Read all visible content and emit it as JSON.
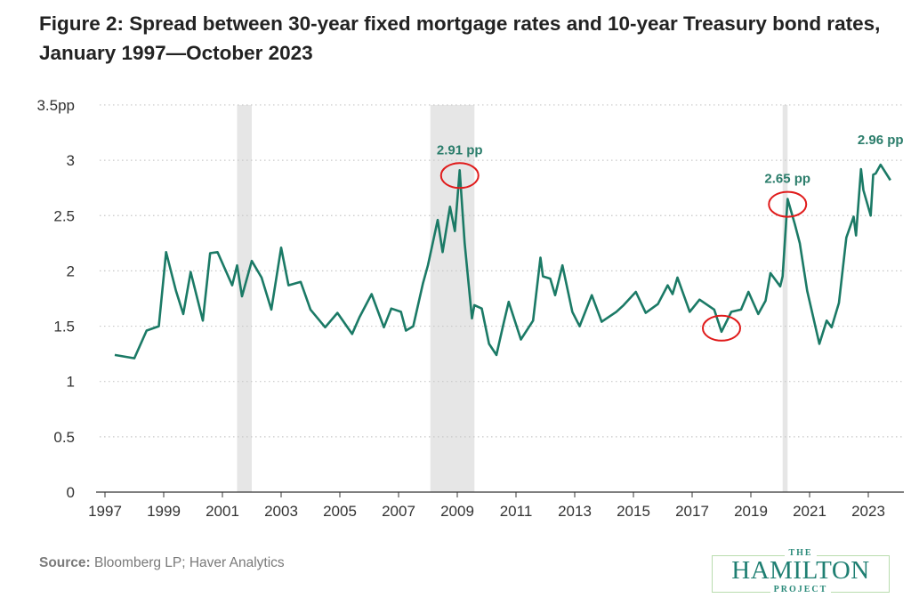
{
  "chart_data": {
    "type": "line",
    "title": "Figure 2: Spread between 30-year fixed mortgage rates and 10-year Treasury bond rates, January 1997—October 2023",
    "xlabel": "",
    "ylabel": "",
    "ylim": [
      0,
      3.5
    ],
    "xlim": [
      "1997-01",
      "2024-03"
    ],
    "y_ticks": [
      {
        "value": 0,
        "label": "0"
      },
      {
        "value": 0.5,
        "label": "0.5"
      },
      {
        "value": 1,
        "label": "1"
      },
      {
        "value": 1.5,
        "label": "1.5"
      },
      {
        "value": 2,
        "label": "2"
      },
      {
        "value": 2.5,
        "label": "2.5"
      },
      {
        "value": 3,
        "label": "3"
      },
      {
        "value": 3.5,
        "label": "3.5pp"
      }
    ],
    "x_ticks": [
      "1997",
      "1999",
      "2001",
      "2003",
      "2005",
      "2007",
      "2009",
      "2011",
      "2013",
      "2015",
      "2017",
      "2019",
      "2021",
      "2023"
    ],
    "grid": "horizontal dotted",
    "line_color": "#1b7a66",
    "recession_color": "#e6e6e6",
    "highlight_color": "#e01b1b",
    "recessions": [
      {
        "start": "2001-07",
        "end": "2002-01"
      },
      {
        "start": "2008-02",
        "end": "2009-08"
      },
      {
        "start": "2020-02",
        "end": "2020-04"
      }
    ],
    "series": [
      {
        "points": [
          [
            "1997-05",
            1.24
          ],
          [
            "1998-01",
            1.21
          ],
          [
            "1998-06",
            1.46
          ],
          [
            "1998-11",
            1.5
          ],
          [
            "1999-02",
            2.17
          ],
          [
            "1999-06",
            1.82
          ],
          [
            "1999-09",
            1.61
          ],
          [
            "1999-12",
            1.99
          ],
          [
            "2000-05",
            1.55
          ],
          [
            "2000-08",
            2.16
          ],
          [
            "2000-11",
            2.17
          ],
          [
            "2001-05",
            1.87
          ],
          [
            "2001-07",
            2.05
          ],
          [
            "2001-09",
            1.77
          ],
          [
            "2002-01",
            2.09
          ],
          [
            "2002-05",
            1.94
          ],
          [
            "2002-09",
            1.65
          ],
          [
            "2003-01",
            2.21
          ],
          [
            "2003-04",
            1.87
          ],
          [
            "2003-09",
            1.9
          ],
          [
            "2004-01",
            1.65
          ],
          [
            "2004-07",
            1.49
          ],
          [
            "2004-12",
            1.62
          ],
          [
            "2005-06",
            1.43
          ],
          [
            "2005-09",
            1.58
          ],
          [
            "2006-02",
            1.79
          ],
          [
            "2006-07",
            1.49
          ],
          [
            "2006-10",
            1.66
          ],
          [
            "2007-02",
            1.63
          ],
          [
            "2007-04",
            1.46
          ],
          [
            "2007-07",
            1.5
          ],
          [
            "2007-11",
            1.89
          ],
          [
            "2008-01",
            2.05
          ],
          [
            "2008-05",
            2.46
          ],
          [
            "2008-07",
            2.17
          ],
          [
            "2008-10",
            2.58
          ],
          [
            "2008-12",
            2.36
          ],
          [
            "2009-02",
            2.91
          ],
          [
            "2009-04",
            2.25
          ],
          [
            "2009-07",
            1.57
          ],
          [
            "2009-08",
            1.69
          ],
          [
            "2009-11",
            1.66
          ],
          [
            "2010-02",
            1.34
          ],
          [
            "2010-05",
            1.24
          ],
          [
            "2010-08",
            1.53
          ],
          [
            "2010-10",
            1.72
          ],
          [
            "2011-03",
            1.38
          ],
          [
            "2011-08",
            1.55
          ],
          [
            "2011-11",
            2.12
          ],
          [
            "2011-12",
            1.95
          ],
          [
            "2012-03",
            1.93
          ],
          [
            "2012-05",
            1.78
          ],
          [
            "2012-08",
            2.05
          ],
          [
            "2012-12",
            1.63
          ],
          [
            "2013-03",
            1.5
          ],
          [
            "2013-08",
            1.78
          ],
          [
            "2013-12",
            1.54
          ],
          [
            "2014-06",
            1.63
          ],
          [
            "2014-09",
            1.69
          ],
          [
            "2015-02",
            1.81
          ],
          [
            "2015-06",
            1.62
          ],
          [
            "2015-11",
            1.7
          ],
          [
            "2016-03",
            1.87
          ],
          [
            "2016-05",
            1.79
          ],
          [
            "2016-07",
            1.94
          ],
          [
            "2016-12",
            1.63
          ],
          [
            "2017-04",
            1.74
          ],
          [
            "2017-10",
            1.65
          ],
          [
            "2018-01",
            1.45
          ],
          [
            "2018-05",
            1.63
          ],
          [
            "2018-09",
            1.65
          ],
          [
            "2018-12",
            1.81
          ],
          [
            "2019-04",
            1.61
          ],
          [
            "2019-07",
            1.73
          ],
          [
            "2019-09",
            1.98
          ],
          [
            "2020-01",
            1.86
          ],
          [
            "2020-02",
            1.95
          ],
          [
            "2020-04",
            2.65
          ],
          [
            "2020-07",
            2.42
          ],
          [
            "2020-09",
            2.25
          ],
          [
            "2020-12",
            1.82
          ],
          [
            "2021-05",
            1.34
          ],
          [
            "2021-08",
            1.55
          ],
          [
            "2021-10",
            1.49
          ],
          [
            "2022-01",
            1.71
          ],
          [
            "2022-04",
            2.3
          ],
          [
            "2022-07",
            2.49
          ],
          [
            "2022-08",
            2.32
          ],
          [
            "2022-10",
            2.92
          ],
          [
            "2022-11",
            2.73
          ],
          [
            "2023-02",
            2.5
          ],
          [
            "2023-03",
            2.87
          ],
          [
            "2023-04",
            2.88
          ],
          [
            "2023-06",
            2.96
          ],
          [
            "2023-10",
            2.82
          ]
        ]
      }
    ],
    "annotations": [
      {
        "label": "2.91 pp",
        "date": "2009-02",
        "value": 2.91,
        "circled": true
      },
      {
        "label": "2.65 pp",
        "date": "2020-04",
        "value": 2.65,
        "circled": true
      },
      {
        "label": "2.96 pp",
        "date": "2023-06",
        "value": 2.96,
        "circled": false
      }
    ],
    "circled_points": [
      {
        "date": "2018-01",
        "value": 1.45
      }
    ]
  },
  "source": {
    "label": "Source:",
    "text": " Bloomberg LP; Haver Analytics"
  },
  "logo": {
    "top": "THE",
    "main": "HAMILTON",
    "bottom": "PROJECT"
  }
}
